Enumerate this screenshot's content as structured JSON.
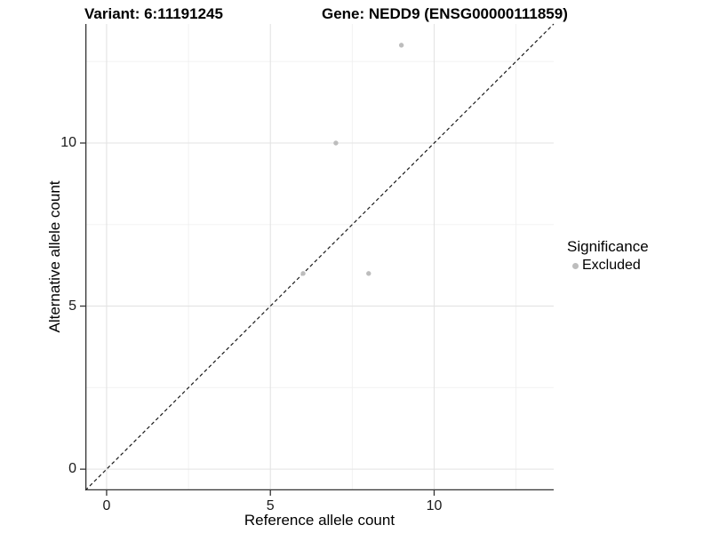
{
  "titles": {
    "variant": "Variant: 6:11191245",
    "gene": "Gene: NEDD9 (ENSG00000111859)"
  },
  "chart_data": {
    "type": "scatter",
    "xlabel": "Reference allele count",
    "ylabel": "Alternative allele count",
    "xlim": [
      -0.65,
      13.65
    ],
    "ylim": [
      -0.65,
      13.65
    ],
    "x_ticks": [
      0,
      5,
      10
    ],
    "y_ticks": [
      0,
      5,
      10
    ],
    "x_minor_gridlines": [
      2.5,
      7.5,
      12.5
    ],
    "y_minor_gridlines": [
      2.5,
      7.5,
      12.5
    ],
    "grid": true,
    "identity_line": {
      "style": "dashed",
      "from": [
        -0.65,
        -0.65
      ],
      "to": [
        13.65,
        13.65
      ]
    },
    "series": [
      {
        "name": "Excluded",
        "color": "#bdbdbd",
        "marker_radius": 2.7,
        "points": [
          [
            9,
            13
          ],
          [
            7,
            10
          ],
          [
            8,
            6
          ],
          [
            6,
            6
          ]
        ]
      }
    ],
    "legend": {
      "title": "Significance",
      "position": "right-center",
      "items": [
        {
          "label": "Excluded",
          "color": "#bdbdbd"
        }
      ]
    }
  },
  "colors": {
    "background": "#ffffff",
    "axis_line": "#333333",
    "tick_mark": "#333333",
    "grid_major": "#e3e3e3",
    "grid_minor": "#f0f0f0",
    "dashed_line": "#1a1a1a",
    "point_gray": "#bdbdbd"
  }
}
